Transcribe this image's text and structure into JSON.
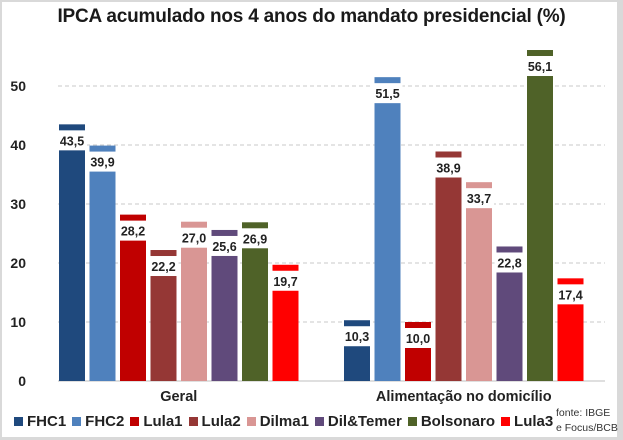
{
  "chart_data": {
    "type": "bar",
    "title": "IPCA acumulado nos 4 anos do mandato presidencial (%)",
    "xlabel": "",
    "ylabel": "",
    "ylim": [
      0,
      55
    ],
    "yticks": [
      0,
      10,
      20,
      30,
      40,
      50
    ],
    "grid": true,
    "legend_position": "bottom",
    "categories": [
      "Geral",
      "Alimentação no domicílio"
    ],
    "series": [
      {
        "name": "FHC1",
        "color": "#1f497d",
        "values": [
          43.5,
          10.3
        ],
        "labels": [
          "43,5",
          "10,3"
        ]
      },
      {
        "name": "FHC2",
        "color": "#4f81bd",
        "values": [
          39.9,
          51.5
        ],
        "labels": [
          "39,9",
          "51,5"
        ]
      },
      {
        "name": "Lula1",
        "color": "#c00000",
        "values": [
          28.2,
          10.0
        ],
        "labels": [
          "28,2",
          "10,0"
        ]
      },
      {
        "name": "Lula2",
        "color": "#953735",
        "values": [
          22.2,
          38.9
        ],
        "labels": [
          "22,2",
          "38,9"
        ]
      },
      {
        "name": "Dilma1",
        "color": "#d99694",
        "values": [
          27.0,
          33.7
        ],
        "labels": [
          "27,0",
          "33,7"
        ]
      },
      {
        "name": "Dil&Temer",
        "color": "#604a7b",
        "values": [
          25.6,
          22.8
        ],
        "labels": [
          "25,6",
          "22,8"
        ]
      },
      {
        "name": "Bolsonaro",
        "color": "#4f6228",
        "values": [
          26.9,
          56.1
        ],
        "labels": [
          "26,9",
          "56,1"
        ]
      },
      {
        "name": "Lula3",
        "color": "#ff0000",
        "values": [
          19.7,
          17.4
        ],
        "labels": [
          "19,7",
          "17,4"
        ]
      }
    ]
  },
  "source": {
    "line1": "fonte: IBGE",
    "line2": "e Focus/BCB"
  }
}
